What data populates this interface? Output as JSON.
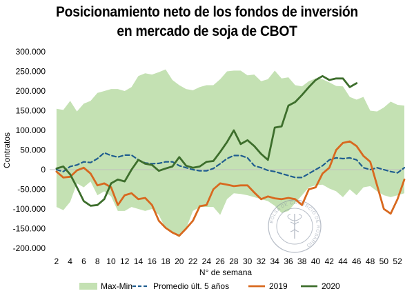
{
  "chart_data": {
    "type": "line",
    "title_lines": [
      "Posicionamiento neto de los fondos de inversión",
      "en mercado de soja de CBOT"
    ],
    "xlabel": "N° de semana",
    "ylabel": "Contratos",
    "xlim": [
      1,
      53
    ],
    "ylim": [
      -200000,
      300000
    ],
    "x_ticks": [
      2,
      4,
      6,
      8,
      10,
      12,
      14,
      16,
      18,
      20,
      22,
      24,
      26,
      28,
      30,
      32,
      34,
      36,
      38,
      40,
      42,
      44,
      46,
      48,
      50,
      52
    ],
    "y_ticks": [
      -200000,
      -150000,
      -100000,
      -50000,
      0,
      50000,
      100000,
      150000,
      200000,
      250000,
      300000
    ],
    "y_tick_labels": [
      "-200.000",
      "-150.000",
      "-100.000",
      "-50.000",
      "0",
      "50.000",
      "100.000",
      "150.000",
      "200.000",
      "250.000",
      "300.000"
    ],
    "legend_position": "bottom",
    "weeks": [
      2,
      3,
      4,
      5,
      6,
      7,
      8,
      9,
      10,
      11,
      12,
      13,
      14,
      15,
      16,
      17,
      18,
      19,
      20,
      21,
      22,
      23,
      24,
      25,
      26,
      27,
      28,
      29,
      30,
      31,
      32,
      33,
      34,
      35,
      36,
      37,
      38,
      39,
      40,
      41,
      42,
      43,
      44,
      45,
      46,
      47,
      48,
      49,
      50,
      51,
      52,
      53
    ],
    "band": {
      "name": "Max-Min",
      "color": "#c4e1b3",
      "max": [
        155000,
        152000,
        175000,
        148000,
        168000,
        175000,
        195000,
        200000,
        205000,
        205000,
        200000,
        210000,
        238000,
        245000,
        242000,
        248000,
        255000,
        228000,
        215000,
        205000,
        202000,
        210000,
        215000,
        215000,
        230000,
        250000,
        252000,
        252000,
        240000,
        242000,
        225000,
        230000,
        252000,
        232000,
        235000,
        215000,
        212000,
        225000,
        232000,
        230000,
        222000,
        213000,
        212000,
        185000,
        178000,
        185000,
        150000,
        148000,
        158000,
        173000,
        165000,
        163000
      ],
      "min": [
        -95000,
        -103000,
        -82000,
        -35000,
        -45000,
        -30000,
        -65000,
        -55000,
        -68000,
        -105000,
        -105000,
        -95000,
        -100000,
        -105000,
        -100000,
        -115000,
        -150000,
        -162000,
        -172000,
        -150000,
        -105000,
        -95000,
        -95000,
        -95000,
        -115000,
        -75000,
        -60000,
        -62000,
        -65000,
        -70000,
        -75000,
        -80000,
        -92000,
        -110000,
        -105000,
        -85000,
        -65000,
        -45000,
        -40000,
        -38000,
        -48000,
        -55000,
        -70000,
        -50000,
        -65000,
        -45000,
        -42000,
        -55000,
        -65000,
        -70000,
        -65000,
        -60000
      ]
    },
    "series": [
      {
        "name": "Promedio últ. 5 años",
        "color": "#1f5d8f",
        "dashed": true,
        "y": [
          0,
          -5000,
          8000,
          12000,
          20000,
          18000,
          28000,
          43000,
          36000,
          32000,
          37000,
          37000,
          25000,
          17000,
          15000,
          16000,
          20000,
          20000,
          10000,
          5000,
          0,
          -3000,
          -3000,
          3000,
          15000,
          28000,
          36000,
          36000,
          30000,
          10000,
          5000,
          -2000,
          -5000,
          -10000,
          -15000,
          -20000,
          -20000,
          -10000,
          0,
          10000,
          25000,
          30000,
          28000,
          30000,
          25000,
          5000,
          0,
          5000,
          0,
          -5000,
          -8000,
          5000
        ]
      },
      {
        "name": "2019",
        "color": "#d8691f",
        "dashed": false,
        "y": [
          -5000,
          -20000,
          -18000,
          -2000,
          5000,
          -10000,
          -40000,
          -35000,
          -45000,
          -90000,
          -65000,
          -60000,
          -75000,
          -72000,
          -90000,
          -130000,
          -148000,
          -160000,
          -168000,
          -150000,
          -130000,
          -93000,
          -90000,
          -50000,
          -35000,
          -38000,
          -42000,
          -40000,
          -40000,
          -58000,
          -75000,
          -68000,
          -73000,
          -75000,
          -72000,
          -75000,
          -90000,
          -50000,
          -45000,
          -10000,
          5000,
          50000,
          68000,
          72000,
          60000,
          35000,
          20000,
          -40000,
          -100000,
          -112000,
          -75000,
          -25000
        ]
      },
      {
        "name": "2020",
        "color": "#3d6e2c",
        "dashed": false,
        "y": [
          3000,
          8000,
          -12000,
          -45000,
          -80000,
          -92000,
          -90000,
          -75000,
          -35000,
          -25000,
          -30000,
          0,
          25000,
          15000,
          12000,
          -3000,
          3000,
          8000,
          32000,
          10000,
          5000,
          8000,
          20000,
          22000,
          45000,
          70000,
          100000,
          65000,
          75000,
          60000,
          40000,
          25000,
          107000,
          110000,
          163000,
          172000,
          190000,
          210000,
          228000,
          238000,
          228000,
          232000,
          232000,
          210000,
          220000
        ]
      }
    ]
  },
  "watermark": {
    "text": "BOLSA DE COMERCIO DE ROSARIO"
  }
}
